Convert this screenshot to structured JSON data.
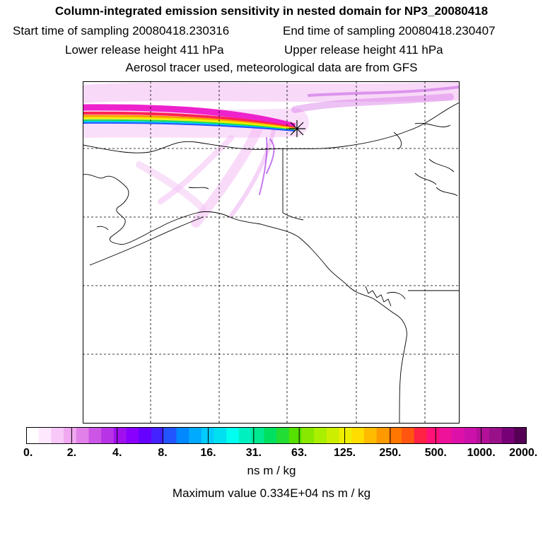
{
  "title": "Column-integrated emission sensitivity in nested domain for NP3_20080418",
  "start_label": "Start time of sampling 20080418.230316",
  "end_label": "End time of sampling 20080418.230407",
  "lower_label": "Lower release height  411 hPa",
  "upper_label": "Upper release height  411 hPa",
  "tracer_line": "Aerosol tracer used, meteorological data are from GFS",
  "colorbar": {
    "tick_labels": [
      "0.",
      "2.",
      "4.",
      "8.",
      "16.",
      "31.",
      "63.",
      "125.",
      "250.",
      "500.",
      "1000.",
      "2000."
    ],
    "colors": [
      "#ffffff",
      "#fde8fd",
      "#f8c8f8",
      "#f0a8f0",
      "#e080e8",
      "#cc55e6",
      "#b833e6",
      "#a010ee",
      "#8a00ff",
      "#6600ff",
      "#4422ff",
      "#2255ff",
      "#0088ff",
      "#00aaff",
      "#00ccff",
      "#00e0f0",
      "#00ffee",
      "#00f0c0",
      "#00e890",
      "#00e060",
      "#22dd33",
      "#55e000",
      "#88e800",
      "#aaee00",
      "#ccee00",
      "#eeee00",
      "#ffdd00",
      "#ffbb00",
      "#ff9900",
      "#ff7700",
      "#ff5511",
      "#ff2244",
      "#ff1177",
      "#ee1199",
      "#dd11aa",
      "#cc11aa",
      "#b31199",
      "#991188",
      "#770077",
      "#550055"
    ],
    "units": "ns m / kg"
  },
  "max_value_line": "Maximum value  0.334E+04 ns m / kg"
}
